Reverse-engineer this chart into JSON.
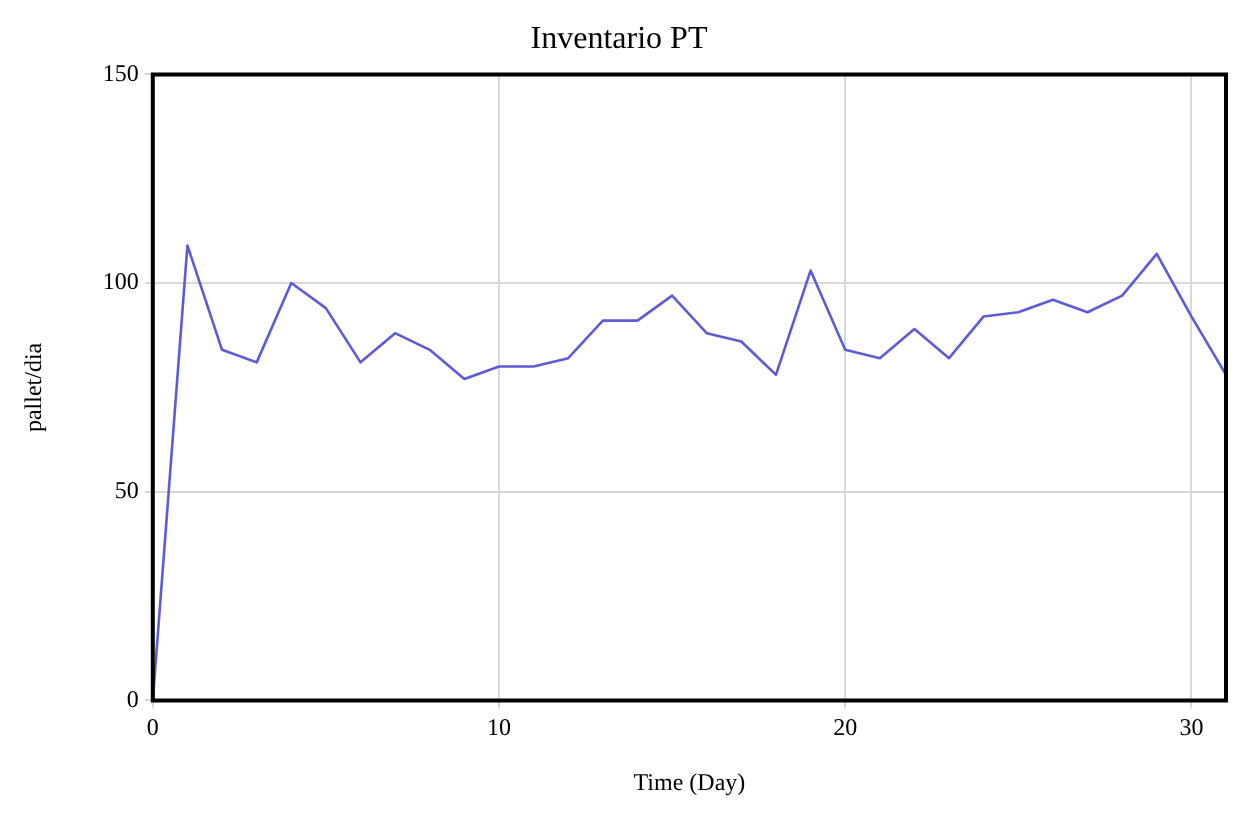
{
  "chart_data": {
    "type": "line",
    "title": "Inventario PT",
    "xlabel": "Time (Day)",
    "ylabel": "pallet/dia",
    "x": [
      0,
      1,
      2,
      3,
      4,
      5,
      6,
      7,
      8,
      9,
      10,
      11,
      12,
      13,
      14,
      15,
      16,
      17,
      18,
      19,
      20,
      21,
      22,
      23,
      24,
      25,
      26,
      27,
      28,
      29,
      30,
      31
    ],
    "series": [
      {
        "color": "#5b5bdc",
        "values": [
          0,
          109,
          84,
          81,
          100,
          94,
          81,
          88,
          84,
          77,
          80,
          80,
          82,
          91,
          91,
          97,
          88,
          86,
          78,
          103,
          84,
          82,
          89,
          82,
          92,
          93,
          96,
          93,
          97,
          107,
          92,
          78
        ]
      }
    ],
    "xlim": [
      0,
      31
    ],
    "xticks": [
      0,
      10,
      20,
      30
    ],
    "ylim": [
      0,
      150
    ],
    "yticks": [
      0,
      50,
      100,
      150
    ],
    "grid": true,
    "legend": false,
    "marker": "none",
    "line_style": "solid"
  }
}
